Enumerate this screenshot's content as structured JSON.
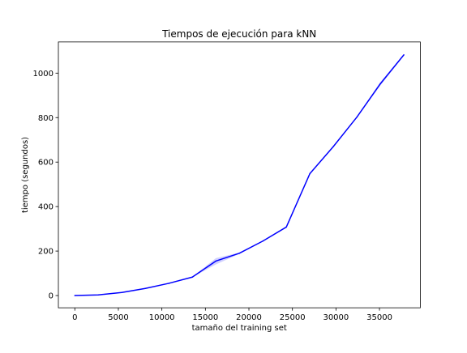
{
  "chart_data": {
    "type": "line",
    "title": "Tiempos de ejecución para kNN",
    "xlabel": "tamaño del training set",
    "ylabel": "tiempo (segundos)",
    "xlim": [
      -1890,
      39690
    ],
    "ylim": [
      -55,
      1140
    ],
    "xticks": [
      0,
      5000,
      10000,
      15000,
      20000,
      25000,
      30000,
      35000
    ],
    "yticks": [
      0,
      200,
      400,
      600,
      800,
      1000
    ],
    "grid": false,
    "legend": "none",
    "series": [
      {
        "color": "#0000ff",
        "band_color": "#b3b3ff",
        "x": [
          0,
          2700,
          5400,
          8100,
          10800,
          13500,
          16200,
          18900,
          21600,
          24300,
          27000,
          29700,
          32400,
          35100,
          37800
        ],
        "y": [
          0,
          3,
          14,
          32,
          55,
          83,
          155,
          190,
          245,
          308,
          548,
          670,
          802,
          952,
          1082
        ],
        "band_lower": [
          0,
          3,
          13,
          31,
          54,
          82,
          140,
          187,
          243,
          306,
          546,
          668,
          800,
          944,
          1080
        ],
        "band_upper": [
          0,
          3,
          15,
          33,
          56,
          84,
          168,
          193,
          247,
          310,
          550,
          672,
          804,
          960,
          1084
        ]
      }
    ]
  }
}
